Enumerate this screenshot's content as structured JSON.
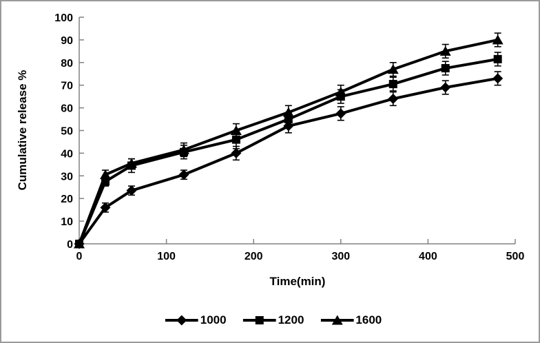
{
  "window": {
    "background": "#ffffff",
    "frame_border_color": "#9a9a9a"
  },
  "chart_data": {
    "type": "line",
    "title": "",
    "xlabel": "Time(min)",
    "ylabel": "Cumulative release %",
    "x": [
      0,
      30,
      60,
      120,
      180,
      240,
      300,
      360,
      420,
      480
    ],
    "xlim": [
      0,
      500
    ],
    "ylim": [
      0,
      100
    ],
    "x_ticks": [
      0,
      100,
      200,
      300,
      400,
      500
    ],
    "y_ticks": [
      0,
      10,
      20,
      30,
      40,
      50,
      60,
      70,
      80,
      90,
      100
    ],
    "grid": false,
    "axis_color": "#808080",
    "text_color": "#000000",
    "legend_position": "bottom-center",
    "error_bars": true,
    "series": [
      {
        "name": "1000",
        "marker": "diamond",
        "color": "#000000",
        "values": [
          0,
          16,
          23.5,
          30.5,
          40,
          52,
          57.5,
          64,
          69,
          73
        ],
        "errors": [
          0,
          2,
          2,
          2,
          3,
          3,
          3,
          3,
          3,
          3
        ]
      },
      {
        "name": "1200",
        "marker": "square",
        "color": "#000000",
        "values": [
          0,
          27.5,
          34.5,
          40.5,
          46,
          55,
          65,
          70.5,
          77.5,
          81.5
        ],
        "errors": [
          0,
          2,
          3,
          3,
          4,
          3,
          3,
          3,
          3,
          3
        ]
      },
      {
        "name": "1600",
        "marker": "triangle",
        "color": "#000000",
        "values": [
          0,
          30.5,
          35.5,
          41.5,
          50,
          58,
          67,
          77,
          85,
          90
        ],
        "errors": [
          0,
          2,
          2,
          3,
          3,
          3,
          3,
          3,
          3,
          3
        ]
      }
    ]
  }
}
